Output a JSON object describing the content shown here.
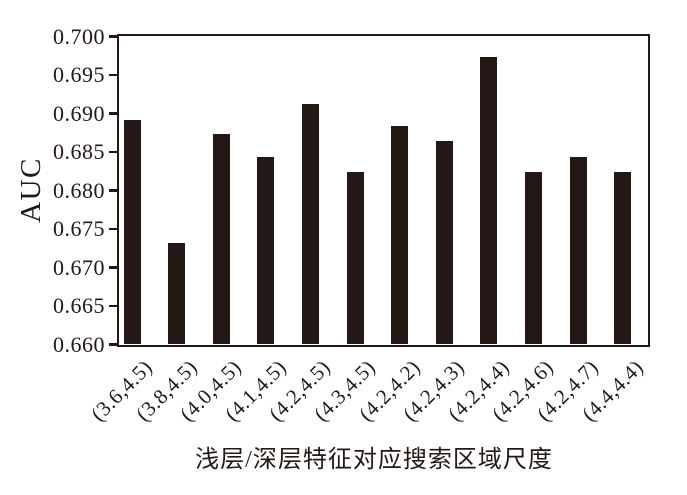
{
  "chart_data": {
    "type": "bar",
    "title": "",
    "xlabel": "浅层/深层特征对应搜索区域尺度",
    "ylabel": "AUC",
    "categories": [
      "(3.6,4.5)",
      "(3.8,4.5)",
      "(4.0,4.5)",
      "(4.1,4.5)",
      "(4.2,4.5)",
      "(4.3,4.5)",
      "(4.2,4.2)",
      "(4.2,4.3)",
      "(4.2,4.4)",
      "(4.2,4.6)",
      "(4.2,4.7)",
      "(4.4,4.4)"
    ],
    "values": [
      0.6892,
      0.6732,
      0.6874,
      0.6844,
      0.6912,
      0.6824,
      0.6884,
      0.6864,
      0.6974,
      0.6824,
      0.6844,
      0.6824
    ],
    "ylim": [
      0.66,
      0.7
    ],
    "ytick_step": 0.005,
    "ytick_labels": [
      "0.700",
      "0.695",
      "0.690",
      "0.685",
      "0.680",
      "0.675",
      "0.670",
      "0.665",
      "0.660"
    ],
    "xtick_label_rotation_deg": 45,
    "grid": false,
    "legend": null,
    "colors": {
      "bar": "#231815",
      "axis": "#231815",
      "text": "#231815",
      "background": "#ffffff"
    }
  }
}
